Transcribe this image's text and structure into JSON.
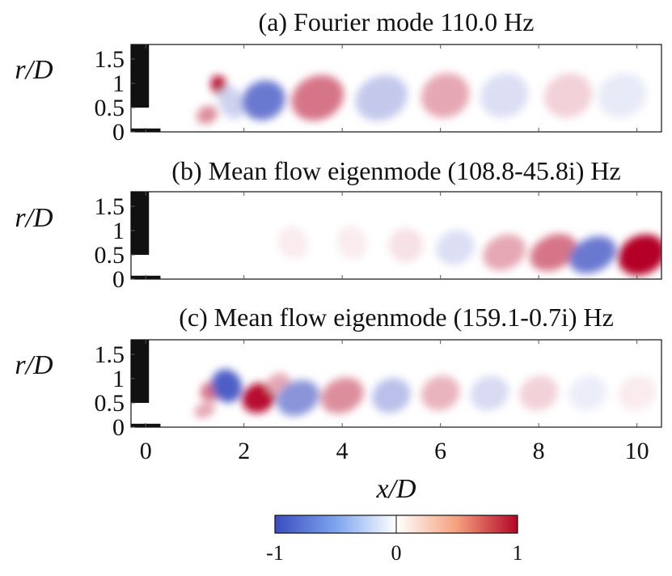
{
  "chart_data": {
    "type": "heatmap",
    "panels": [
      {
        "title": "(a) Fourier mode 110.0 Hz",
        "ylabel": "r/D",
        "yticks": [
          "1.5",
          "1",
          "0.5",
          "0"
        ],
        "lobes": [
          {
            "x": 1.5,
            "r": 0.95,
            "w": 0.16,
            "h": 0.22,
            "v": 0.95
          },
          {
            "x": 1.25,
            "r": 0.35,
            "w": 0.22,
            "h": 0.18,
            "v": 0.45
          },
          {
            "x": 1.75,
            "r": 0.6,
            "w": 0.25,
            "h": 0.35,
            "v": -0.25
          },
          {
            "x": 2.4,
            "r": 0.65,
            "w": 0.45,
            "h": 0.4,
            "v": -0.75
          },
          {
            "x": 3.5,
            "r": 0.7,
            "w": 0.55,
            "h": 0.45,
            "v": 0.55
          },
          {
            "x": 4.8,
            "r": 0.7,
            "w": 0.55,
            "h": 0.45,
            "v": -0.3
          },
          {
            "x": 6.1,
            "r": 0.75,
            "w": 0.5,
            "h": 0.45,
            "v": 0.35
          },
          {
            "x": 7.3,
            "r": 0.75,
            "w": 0.5,
            "h": 0.45,
            "v": -0.18
          },
          {
            "x": 8.6,
            "r": 0.75,
            "w": 0.5,
            "h": 0.45,
            "v": 0.18
          },
          {
            "x": 9.7,
            "r": 0.75,
            "w": 0.5,
            "h": 0.45,
            "v": -0.12
          }
        ]
      },
      {
        "title": "(b) Mean flow eigenmode (108.8-45.8i) Hz",
        "ylabel": "r/D",
        "yticks": [
          "1.5",
          "1",
          "0.5",
          "0"
        ],
        "lobes": [
          {
            "x": 3.0,
            "r": 0.75,
            "w": 0.3,
            "h": 0.35,
            "v": 0.08
          },
          {
            "x": 4.2,
            "r": 0.75,
            "w": 0.3,
            "h": 0.35,
            "v": 0.08
          },
          {
            "x": 5.3,
            "r": 0.7,
            "w": 0.35,
            "h": 0.35,
            "v": 0.12
          },
          {
            "x": 6.3,
            "r": 0.65,
            "w": 0.4,
            "h": 0.35,
            "v": -0.18
          },
          {
            "x": 7.3,
            "r": 0.55,
            "w": 0.45,
            "h": 0.35,
            "v": 0.35
          },
          {
            "x": 8.3,
            "r": 0.55,
            "w": 0.5,
            "h": 0.35,
            "v": 0.55
          },
          {
            "x": 9.1,
            "r": 0.5,
            "w": 0.5,
            "h": 0.35,
            "v": -0.75
          },
          {
            "x": 10.1,
            "r": 0.5,
            "w": 0.5,
            "h": 0.4,
            "v": 1.0
          }
        ]
      },
      {
        "title": "(c) Mean flow eigenmode (159.1-0.7i) Hz",
        "ylabel": "r/D",
        "yticks": [
          "1.5",
          "1",
          "0.5",
          "0"
        ],
        "lobes": [
          {
            "x": 1.35,
            "r": 0.75,
            "w": 0.25,
            "h": 0.2,
            "v": 0.55
          },
          {
            "x": 1.2,
            "r": 0.35,
            "w": 0.22,
            "h": 0.15,
            "v": 0.35
          },
          {
            "x": 1.65,
            "r": 0.85,
            "w": 0.3,
            "h": 0.35,
            "v": -0.9
          },
          {
            "x": 2.3,
            "r": 0.6,
            "w": 0.35,
            "h": 0.3,
            "v": 0.95
          },
          {
            "x": 2.7,
            "r": 0.9,
            "w": 0.25,
            "h": 0.2,
            "v": 0.35
          },
          {
            "x": 3.1,
            "r": 0.6,
            "w": 0.45,
            "h": 0.35,
            "v": -0.6
          },
          {
            "x": 4.0,
            "r": 0.65,
            "w": 0.45,
            "h": 0.35,
            "v": 0.45
          },
          {
            "x": 5.0,
            "r": 0.65,
            "w": 0.4,
            "h": 0.35,
            "v": -0.35
          },
          {
            "x": 6.0,
            "r": 0.7,
            "w": 0.4,
            "h": 0.35,
            "v": 0.3
          },
          {
            "x": 7.0,
            "r": 0.7,
            "w": 0.4,
            "h": 0.35,
            "v": -0.2
          },
          {
            "x": 8.0,
            "r": 0.7,
            "w": 0.4,
            "h": 0.35,
            "v": 0.18
          },
          {
            "x": 9.0,
            "r": 0.7,
            "w": 0.4,
            "h": 0.35,
            "v": -0.1
          },
          {
            "x": 10.0,
            "r": 0.7,
            "w": 0.4,
            "h": 0.35,
            "v": 0.08
          }
        ]
      }
    ],
    "x_range": [
      -0.3,
      10.5
    ],
    "r_range": [
      0,
      1.8
    ],
    "xticks": [
      "0",
      "2",
      "4",
      "6",
      "8",
      "10"
    ],
    "xlabel": "x/D",
    "colorbar": {
      "ticks": [
        "-1",
        "0",
        "1"
      ],
      "range": [
        -1,
        1
      ],
      "colormap": "coolwarm",
      "negative_color": "#3a4cc0",
      "zero_color": "#ffffff",
      "positive_color": "#b40426"
    }
  }
}
